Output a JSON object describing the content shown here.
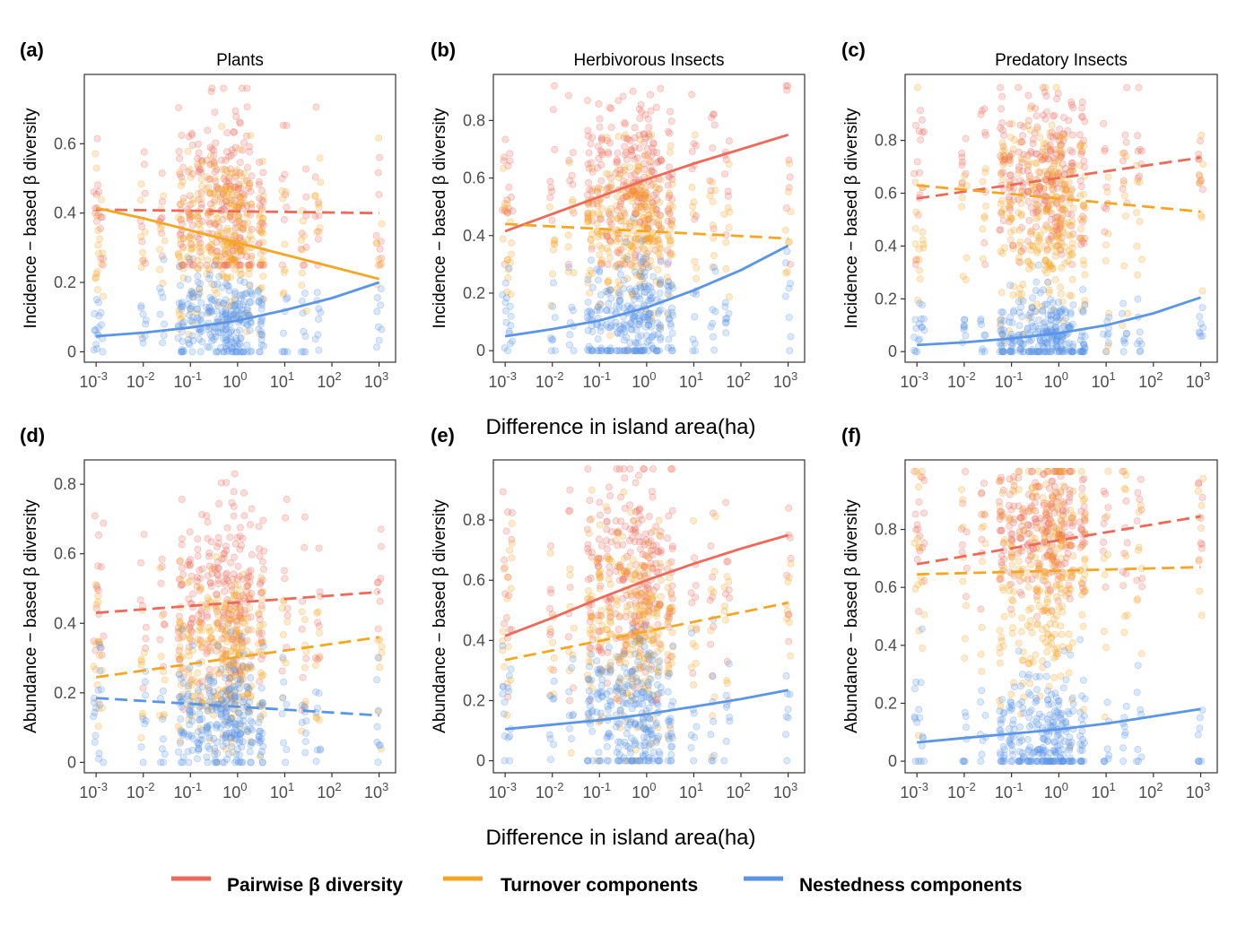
{
  "colors": {
    "pairwise": "#ED6A5A",
    "turnover": "#F5A623",
    "nestedness": "#5B96E6"
  },
  "x_axis_label_top": "Difference in island area(ha)",
  "x_axis_label_bottom": "Difference in island area(ha)",
  "legend": [
    {
      "label": "Pairwise β diversity",
      "color": "#ED6A5A"
    },
    {
      "label": "Turnover components",
      "color": "#F5A623"
    },
    {
      "label": "Nestedness components",
      "color": "#5B96E6"
    }
  ],
  "x_ticks": [
    {
      "base": "10",
      "exp": "-3",
      "value": -3
    },
    {
      "base": "10",
      "exp": "-2",
      "value": -2
    },
    {
      "base": "10",
      "exp": "-1",
      "value": -1
    },
    {
      "base": "10",
      "exp": "0",
      "value": 0
    },
    {
      "base": "10",
      "exp": "1",
      "value": 1
    },
    {
      "base": "10",
      "exp": "2",
      "value": 2
    },
    {
      "base": "10",
      "exp": "3",
      "value": 3
    }
  ],
  "chart_data": [
    {
      "type": "scatter",
      "tag": "(a)",
      "title": "Plants",
      "ylabel": "Incidence − based β diversity",
      "xscale": "log10",
      "xlim": [
        -3.25,
        3.35
      ],
      "ylim": [
        -0.03,
        0.8
      ],
      "yticks": [
        0,
        0.2,
        0.4,
        0.6
      ],
      "ytick_labels": [
        "0",
        "0.2",
        "0.4",
        "0.6"
      ],
      "trends": [
        {
          "series": "Pairwise β diversity",
          "style": "dashed",
          "x": [
            -3,
            3
          ],
          "y": [
            0.41,
            0.4
          ]
        },
        {
          "series": "Turnover components",
          "style": "solid",
          "x": [
            -3,
            -2,
            -1,
            0,
            1,
            2,
            3
          ],
          "y": [
            0.415,
            0.385,
            0.35,
            0.315,
            0.28,
            0.245,
            0.21
          ]
        },
        {
          "series": "Nestedness components",
          "style": "solid",
          "x": [
            -3,
            -2,
            -1,
            0,
            1,
            2,
            3
          ],
          "y": [
            0.045,
            0.055,
            0.07,
            0.09,
            0.12,
            0.155,
            0.2
          ]
        }
      ],
      "clouds": [
        {
          "series": "Pairwise β diversity",
          "center": 0.42,
          "spread": 0.14,
          "range": [
            0.25,
            0.76
          ]
        },
        {
          "series": "Turnover components",
          "center": 0.33,
          "spread": 0.12,
          "range": [
            0.05,
            0.65
          ]
        },
        {
          "series": "Nestedness components",
          "center": 0.08,
          "spread": 0.07,
          "range": [
            0,
            0.3
          ]
        }
      ]
    },
    {
      "type": "scatter",
      "tag": "(b)",
      "title": "Herbivorous Insects",
      "ylabel": "Incidence − based β diversity",
      "xscale": "log10",
      "xlim": [
        -3.25,
        3.35
      ],
      "ylim": [
        -0.04,
        0.96
      ],
      "yticks": [
        0,
        0.2,
        0.4,
        0.6,
        0.8
      ],
      "ytick_labels": [
        "0",
        "0.2",
        "0.4",
        "0.6",
        "0.8"
      ],
      "trends": [
        {
          "series": "Pairwise β diversity",
          "style": "solid",
          "x": [
            -3,
            -2,
            -1,
            0,
            1,
            2,
            3
          ],
          "y": [
            0.415,
            0.475,
            0.535,
            0.595,
            0.65,
            0.7,
            0.75
          ]
        },
        {
          "series": "Turnover components",
          "style": "dashed",
          "x": [
            -3,
            3
          ],
          "y": [
            0.44,
            0.39
          ]
        },
        {
          "series": "Nestedness components",
          "style": "solid",
          "x": [
            -3,
            -2,
            -1,
            0,
            1,
            2,
            3
          ],
          "y": [
            0.05,
            0.075,
            0.105,
            0.15,
            0.21,
            0.28,
            0.365
          ]
        }
      ],
      "clouds": [
        {
          "series": "Pairwise β diversity",
          "center": 0.58,
          "spread": 0.15,
          "range": [
            0.3,
            0.92
          ]
        },
        {
          "series": "Turnover components",
          "center": 0.42,
          "spread": 0.13,
          "range": [
            0,
            0.75
          ]
        },
        {
          "series": "Nestedness components",
          "center": 0.12,
          "spread": 0.1,
          "range": [
            0,
            0.6
          ]
        }
      ]
    },
    {
      "type": "scatter",
      "tag": "(c)",
      "title": "Predatory Insects",
      "ylabel": "Incidence − based β diversity",
      "xscale": "log10",
      "xlim": [
        -3.25,
        3.35
      ],
      "ylim": [
        -0.04,
        1.05
      ],
      "yticks": [
        0,
        0.2,
        0.4,
        0.6,
        0.8
      ],
      "ytick_labels": [
        "0",
        "0.2",
        "0.4",
        "0.6",
        "0.8"
      ],
      "trends": [
        {
          "series": "Pairwise β diversity",
          "style": "dashed",
          "x": [
            -3,
            3
          ],
          "y": [
            0.58,
            0.735
          ]
        },
        {
          "series": "Turnover components",
          "style": "dashed",
          "x": [
            -3,
            3
          ],
          "y": [
            0.63,
            0.53
          ]
        },
        {
          "series": "Nestedness components",
          "style": "solid",
          "x": [
            -3,
            -2,
            -1,
            0,
            1,
            2,
            3
          ],
          "y": [
            0.025,
            0.035,
            0.05,
            0.07,
            0.1,
            0.145,
            0.205
          ]
        }
      ],
      "clouds": [
        {
          "series": "Pairwise β diversity",
          "center": 0.67,
          "spread": 0.15,
          "range": [
            0.33,
            1
          ]
        },
        {
          "series": "Turnover components",
          "center": 0.5,
          "spread": 0.2,
          "range": [
            0,
            1
          ]
        },
        {
          "series": "Nestedness components",
          "center": 0.06,
          "spread": 0.07,
          "range": [
            0,
            0.6
          ]
        }
      ]
    },
    {
      "type": "scatter",
      "tag": "(d)",
      "title": "",
      "ylabel": "Abundance − based β diversity",
      "xscale": "log10",
      "xlim": [
        -3.25,
        3.35
      ],
      "ylim": [
        -0.03,
        0.87
      ],
      "yticks": [
        0,
        0.2,
        0.4,
        0.6,
        0.8
      ],
      "ytick_labels": [
        "0",
        "0.2",
        "0.4",
        "0.6",
        "0.8"
      ],
      "trends": [
        {
          "series": "Pairwise β diversity",
          "style": "dashed",
          "x": [
            -3,
            3
          ],
          "y": [
            0.43,
            0.49
          ]
        },
        {
          "series": "Turnover components",
          "style": "dashed",
          "x": [
            -3,
            3
          ],
          "y": [
            0.245,
            0.36
          ]
        },
        {
          "series": "Nestedness components",
          "style": "dashed",
          "x": [
            -3,
            3
          ],
          "y": [
            0.185,
            0.135
          ]
        }
      ],
      "clouds": [
        {
          "series": "Pairwise β diversity",
          "center": 0.47,
          "spread": 0.14,
          "range": [
            0.15,
            0.83
          ]
        },
        {
          "series": "Turnover components",
          "center": 0.3,
          "spread": 0.12,
          "range": [
            0,
            0.65
          ]
        },
        {
          "series": "Nestedness components",
          "center": 0.13,
          "spread": 0.09,
          "range": [
            0,
            0.55
          ]
        }
      ]
    },
    {
      "type": "scatter",
      "tag": "(e)",
      "title": "",
      "ylabel": "Abundance − based β diversity",
      "xscale": "log10",
      "xlim": [
        -3.25,
        3.35
      ],
      "ylim": [
        -0.04,
        1.0
      ],
      "yticks": [
        0,
        0.2,
        0.4,
        0.6,
        0.8
      ],
      "ytick_labels": [
        "0",
        "0.2",
        "0.4",
        "0.6",
        "0.8"
      ],
      "trends": [
        {
          "series": "Pairwise β diversity",
          "style": "solid",
          "x": [
            -3,
            -2,
            -1,
            0,
            1,
            2,
            3
          ],
          "y": [
            0.415,
            0.475,
            0.54,
            0.6,
            0.655,
            0.705,
            0.75
          ]
        },
        {
          "series": "Turnover components",
          "style": "dashed",
          "x": [
            -3,
            3
          ],
          "y": [
            0.335,
            0.525
          ]
        },
        {
          "series": "Nestedness components",
          "style": "solid",
          "x": [
            -3,
            -2,
            -1,
            0,
            1,
            2,
            3
          ],
          "y": [
            0.105,
            0.12,
            0.135,
            0.155,
            0.18,
            0.205,
            0.235
          ]
        }
      ],
      "clouds": [
        {
          "series": "Pairwise β diversity",
          "center": 0.6,
          "spread": 0.17,
          "range": [
            0.2,
            0.97
          ]
        },
        {
          "series": "Turnover components",
          "center": 0.42,
          "spread": 0.17,
          "range": [
            0,
            0.97
          ]
        },
        {
          "series": "Nestedness components",
          "center": 0.15,
          "spread": 0.12,
          "range": [
            0,
            0.7
          ]
        }
      ]
    },
    {
      "type": "scatter",
      "tag": "(f)",
      "title": "",
      "ylabel": "Abundance − based β diversity",
      "xscale": "log10",
      "xlim": [
        -3.25,
        3.35
      ],
      "ylim": [
        -0.04,
        1.04
      ],
      "yticks": [
        0,
        0.2,
        0.4,
        0.6,
        0.8
      ],
      "ytick_labels": [
        "0",
        "0.2",
        "0.4",
        "0.6",
        "0.8"
      ],
      "trends": [
        {
          "series": "Pairwise β diversity",
          "style": "dashed",
          "x": [
            -3,
            3
          ],
          "y": [
            0.68,
            0.845
          ]
        },
        {
          "series": "Turnover components",
          "style": "dashed",
          "x": [
            -3,
            3
          ],
          "y": [
            0.645,
            0.67
          ]
        },
        {
          "series": "Nestedness components",
          "style": "solid",
          "x": [
            -3,
            -2,
            -1,
            0,
            1,
            2,
            3
          ],
          "y": [
            0.065,
            0.08,
            0.095,
            0.11,
            0.13,
            0.155,
            0.18
          ]
        }
      ],
      "clouds": [
        {
          "series": "Pairwise β diversity",
          "center": 0.8,
          "spread": 0.13,
          "range": [
            0.3,
            1
          ]
        },
        {
          "series": "Turnover components",
          "center": 0.62,
          "spread": 0.22,
          "range": [
            0.05,
            1
          ]
        },
        {
          "series": "Nestedness components",
          "center": 0.08,
          "spread": 0.12,
          "range": [
            0,
            0.7
          ]
        }
      ]
    }
  ]
}
